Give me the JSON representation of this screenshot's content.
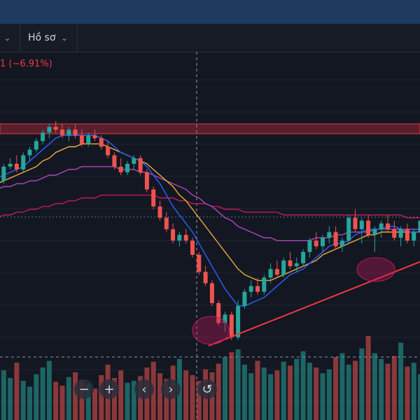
{
  "toolbar": {
    "first_chevron": "⌄",
    "profile_label": "Hồ sơ",
    "profile_chevron": "⌄"
  },
  "price_change": "1 (−6.91%)",
  "colors": {
    "bull": "#26a69a",
    "bear": "#ef5350",
    "ma_fast": "#2962ff",
    "ma_mid": "#f2a93b",
    "ma_slow": "#ab47bc",
    "ma_long": "#c2185b",
    "trendline": "#f23645",
    "resistance_zone": "#f23645"
  },
  "zoom_controls": {
    "zoom_out": "−",
    "zoom_in": "+",
    "scroll_left": "‹",
    "scroll_right": "›",
    "reset": "↺"
  },
  "chart_data": {
    "type": "candlestick",
    "note_units": "unlabeled price axis (relative)",
    "candles": [
      {
        "o": 60,
        "h": 62,
        "l": 56,
        "c": 58
      },
      {
        "o": 58,
        "h": 64,
        "l": 57,
        "c": 63
      },
      {
        "o": 63,
        "h": 66,
        "l": 62,
        "c": 64
      },
      {
        "o": 64,
        "h": 67,
        "l": 61,
        "c": 62
      },
      {
        "o": 62,
        "h": 68,
        "l": 61,
        "c": 67
      },
      {
        "o": 67,
        "h": 70,
        "l": 65,
        "c": 69
      },
      {
        "o": 69,
        "h": 73,
        "l": 68,
        "c": 72
      },
      {
        "o": 72,
        "h": 76,
        "l": 71,
        "c": 75
      },
      {
        "o": 75,
        "h": 78,
        "l": 73,
        "c": 77
      },
      {
        "o": 77,
        "h": 79,
        "l": 75,
        "c": 76
      },
      {
        "o": 76,
        "h": 78,
        "l": 73,
        "c": 74
      },
      {
        "o": 74,
        "h": 77,
        "l": 72,
        "c": 76
      },
      {
        "o": 76,
        "h": 78,
        "l": 73,
        "c": 74
      },
      {
        "o": 74,
        "h": 76,
        "l": 70,
        "c": 71
      },
      {
        "o": 71,
        "h": 75,
        "l": 70,
        "c": 74
      },
      {
        "o": 74,
        "h": 76,
        "l": 72,
        "c": 73
      },
      {
        "o": 73,
        "h": 74,
        "l": 69,
        "c": 70
      },
      {
        "o": 70,
        "h": 72,
        "l": 66,
        "c": 67
      },
      {
        "o": 67,
        "h": 68,
        "l": 62,
        "c": 63
      },
      {
        "o": 63,
        "h": 66,
        "l": 60,
        "c": 61
      },
      {
        "o": 61,
        "h": 65,
        "l": 60,
        "c": 64
      },
      {
        "o": 64,
        "h": 67,
        "l": 62,
        "c": 66
      },
      {
        "o": 66,
        "h": 67,
        "l": 60,
        "c": 61
      },
      {
        "o": 61,
        "h": 62,
        "l": 54,
        "c": 55
      },
      {
        "o": 55,
        "h": 56,
        "l": 48,
        "c": 49
      },
      {
        "o": 49,
        "h": 51,
        "l": 44,
        "c": 45
      },
      {
        "o": 45,
        "h": 47,
        "l": 40,
        "c": 41
      },
      {
        "o": 41,
        "h": 43,
        "l": 36,
        "c": 37
      },
      {
        "o": 37,
        "h": 40,
        "l": 35,
        "c": 39
      },
      {
        "o": 39,
        "h": 41,
        "l": 36,
        "c": 37
      },
      {
        "o": 37,
        "h": 38,
        "l": 31,
        "c": 32
      },
      {
        "o": 32,
        "h": 33,
        "l": 25,
        "c": 26
      },
      {
        "o": 26,
        "h": 28,
        "l": 21,
        "c": 22
      },
      {
        "o": 22,
        "h": 23,
        "l": 14,
        "c": 15
      },
      {
        "o": 15,
        "h": 16,
        "l": 7,
        "c": 8
      },
      {
        "o": 8,
        "h": 12,
        "l": 5,
        "c": 11
      },
      {
        "o": 11,
        "h": 12,
        "l": 2,
        "c": 3
      },
      {
        "o": 3,
        "h": 16,
        "l": 2,
        "c": 14
      },
      {
        "o": 14,
        "h": 20,
        "l": 13,
        "c": 19
      },
      {
        "o": 19,
        "h": 23,
        "l": 17,
        "c": 21
      },
      {
        "o": 21,
        "h": 24,
        "l": 18,
        "c": 19
      },
      {
        "o": 19,
        "h": 25,
        "l": 18,
        "c": 24
      },
      {
        "o": 24,
        "h": 29,
        "l": 22,
        "c": 27
      },
      {
        "o": 27,
        "h": 30,
        "l": 24,
        "c": 25
      },
      {
        "o": 25,
        "h": 31,
        "l": 24,
        "c": 30
      },
      {
        "o": 30,
        "h": 33,
        "l": 27,
        "c": 28
      },
      {
        "o": 28,
        "h": 31,
        "l": 26,
        "c": 29
      },
      {
        "o": 29,
        "h": 34,
        "l": 28,
        "c": 33
      },
      {
        "o": 33,
        "h": 38,
        "l": 31,
        "c": 37
      },
      {
        "o": 37,
        "h": 40,
        "l": 34,
        "c": 35
      },
      {
        "o": 35,
        "h": 39,
        "l": 33,
        "c": 38
      },
      {
        "o": 38,
        "h": 42,
        "l": 36,
        "c": 40
      },
      {
        "o": 40,
        "h": 42,
        "l": 34,
        "c": 35
      },
      {
        "o": 35,
        "h": 38,
        "l": 33,
        "c": 37
      },
      {
        "o": 37,
        "h": 46,
        "l": 36,
        "c": 45
      },
      {
        "o": 45,
        "h": 48,
        "l": 40,
        "c": 41
      },
      {
        "o": 41,
        "h": 45,
        "l": 36,
        "c": 44
      },
      {
        "o": 44,
        "h": 46,
        "l": 38,
        "c": 39
      },
      {
        "o": 39,
        "h": 42,
        "l": 33,
        "c": 41
      },
      {
        "o": 41,
        "h": 44,
        "l": 38,
        "c": 43
      },
      {
        "o": 43,
        "h": 46,
        "l": 40,
        "c": 41
      },
      {
        "o": 41,
        "h": 44,
        "l": 37,
        "c": 38
      },
      {
        "o": 38,
        "h": 42,
        "l": 35,
        "c": 41
      },
      {
        "o": 41,
        "h": 43,
        "l": 36,
        "c": 37
      },
      {
        "o": 37,
        "h": 41,
        "l": 35,
        "c": 40
      },
      {
        "o": 40,
        "h": 45,
        "l": 38,
        "c": 44
      },
      {
        "o": 44,
        "h": 46,
        "l": 40,
        "c": 41
      }
    ],
    "ma_fast": [
      59,
      60,
      61,
      62,
      63,
      65,
      67,
      69,
      71,
      73,
      74,
      74,
      74,
      74,
      74,
      74,
      73,
      72,
      70,
      68,
      67,
      66,
      65,
      63,
      60,
      57,
      53,
      49,
      46,
      43,
      40,
      36,
      32,
      28,
      24,
      20,
      17,
      14,
      14,
      15,
      16,
      17,
      19,
      21,
      23,
      25,
      26,
      27,
      29,
      31,
      33,
      35,
      36,
      36,
      37,
      39,
      40,
      41,
      41,
      41,
      42,
      42,
      41,
      40,
      40,
      40,
      41
    ],
    "ma_mid": [
      57,
      58,
      59,
      60,
      61,
      62,
      63,
      65,
      66,
      68,
      69,
      70,
      70,
      71,
      71,
      71,
      71,
      70,
      69,
      68,
      67,
      66,
      65,
      64,
      62,
      60,
      58,
      56,
      53,
      51,
      48,
      45,
      42,
      39,
      36,
      33,
      30,
      27,
      25,
      24,
      23,
      23,
      23,
      24,
      25,
      26,
      27,
      28,
      29,
      30,
      32,
      33,
      34,
      35,
      36,
      37,
      38,
      39,
      39,
      40,
      40,
      40,
      40,
      40,
      40,
      40,
      40
    ],
    "ma_slow": [
      55,
      56,
      56,
      57,
      57,
      58,
      58,
      59,
      60,
      60,
      61,
      62,
      62,
      63,
      63,
      63,
      63,
      63,
      63,
      62,
      62,
      62,
      61,
      61,
      60,
      59,
      58,
      57,
      56,
      55,
      53,
      52,
      50,
      49,
      47,
      45,
      44,
      42,
      41,
      40,
      39,
      38,
      38,
      37,
      37,
      37,
      37,
      37,
      37,
      38,
      38,
      38,
      39,
      39,
      40,
      40,
      40,
      40,
      41,
      41,
      41,
      41,
      41,
      41,
      41,
      41,
      41
    ],
    "ma_long": [
      45,
      46,
      46,
      47,
      47,
      48,
      48,
      49,
      49,
      50,
      50,
      51,
      51,
      52,
      52,
      52,
      53,
      53,
      53,
      53,
      53,
      53,
      53,
      53,
      53,
      52,
      52,
      52,
      51,
      51,
      50,
      50,
      50,
      49,
      49,
      48,
      48,
      48,
      47,
      47,
      47,
      47,
      47,
      47,
      46,
      46,
      46,
      46,
      46,
      46,
      46,
      46,
      46,
      46,
      46,
      46,
      46,
      46,
      46,
      46,
      46,
      46,
      46,
      45,
      45,
      45,
      45
    ],
    "volume": [
      38,
      52,
      44,
      60,
      41,
      35,
      48,
      55,
      62,
      40,
      36,
      45,
      50,
      42,
      38,
      33,
      47,
      58,
      44,
      52,
      39,
      41,
      46,
      55,
      61,
      49,
      43,
      57,
      64,
      52,
      47,
      41,
      53,
      50,
      59,
      66,
      71,
      74,
      58,
      49,
      62,
      55,
      48,
      52,
      61,
      57,
      64,
      72,
      60,
      55,
      49,
      53,
      66,
      70,
      58,
      62,
      75,
      88,
      70,
      64,
      59,
      67,
      81,
      56,
      60,
      48,
      44
    ]
  }
}
